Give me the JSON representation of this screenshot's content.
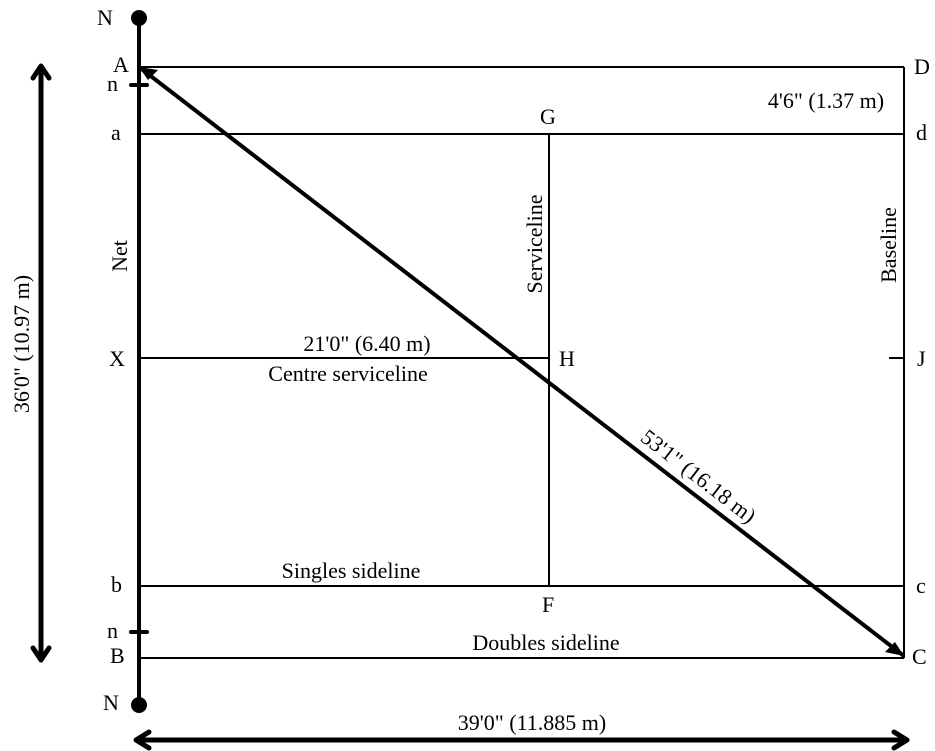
{
  "points": {
    "A": "A",
    "D": "D",
    "a": "a",
    "d": "d",
    "G": "G",
    "X": "X",
    "H": "H",
    "J": "J",
    "b": "b",
    "c": "c",
    "F": "F",
    "B": "B",
    "C": "C",
    "n_top": "n",
    "n_bottom": "n",
    "N_top": "N",
    "N_bottom": "N"
  },
  "labels": {
    "net": "Net",
    "serviceline": "Serviceline",
    "baseline": "Baseline",
    "centre_serviceline": "Centre serviceline",
    "singles_sideline": "Singles sideline",
    "doubles_sideline": "Doubles sideline"
  },
  "dimensions": {
    "alley_width": "4'6\" (1.37 m)",
    "service_length": "21'0\" (6.40 m)",
    "diagonal": "53'1\" (16.18 m)",
    "court_width": "36'0\" (10.97 m)",
    "court_length": "39'0\" (11.885 m)"
  }
}
